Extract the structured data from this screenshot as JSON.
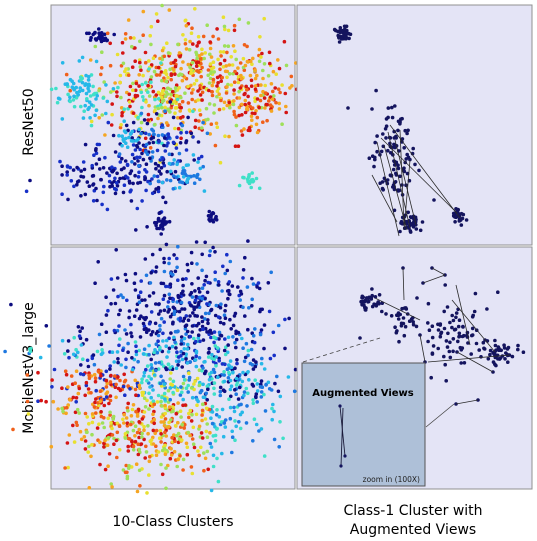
{
  "chart_data": {
    "type": "scatter",
    "rows": [
      "ResNet50",
      "MobileNetV3_large"
    ],
    "columns": [
      "10-Class Clusters",
      "Class-1 Cluster with",
      "Augmented Views"
    ],
    "inset": {
      "title": "Augmented Views",
      "note": "zoom in (100X)"
    },
    "colors": {
      "panel_bg": "#e4e4f6",
      "panel_border": "#909090",
      "inset_bg": "#aec0d8",
      "class1": "#14145e",
      "classes": [
        "#0d0d80",
        "#1730c8",
        "#1e78e0",
        "#26b8e8",
        "#3fe0c8",
        "#9ee05a",
        "#e8e030",
        "#f5a522",
        "#f0601a",
        "#d41414"
      ]
    },
    "marker": "dot",
    "grid": false,
    "legend": "none"
  }
}
